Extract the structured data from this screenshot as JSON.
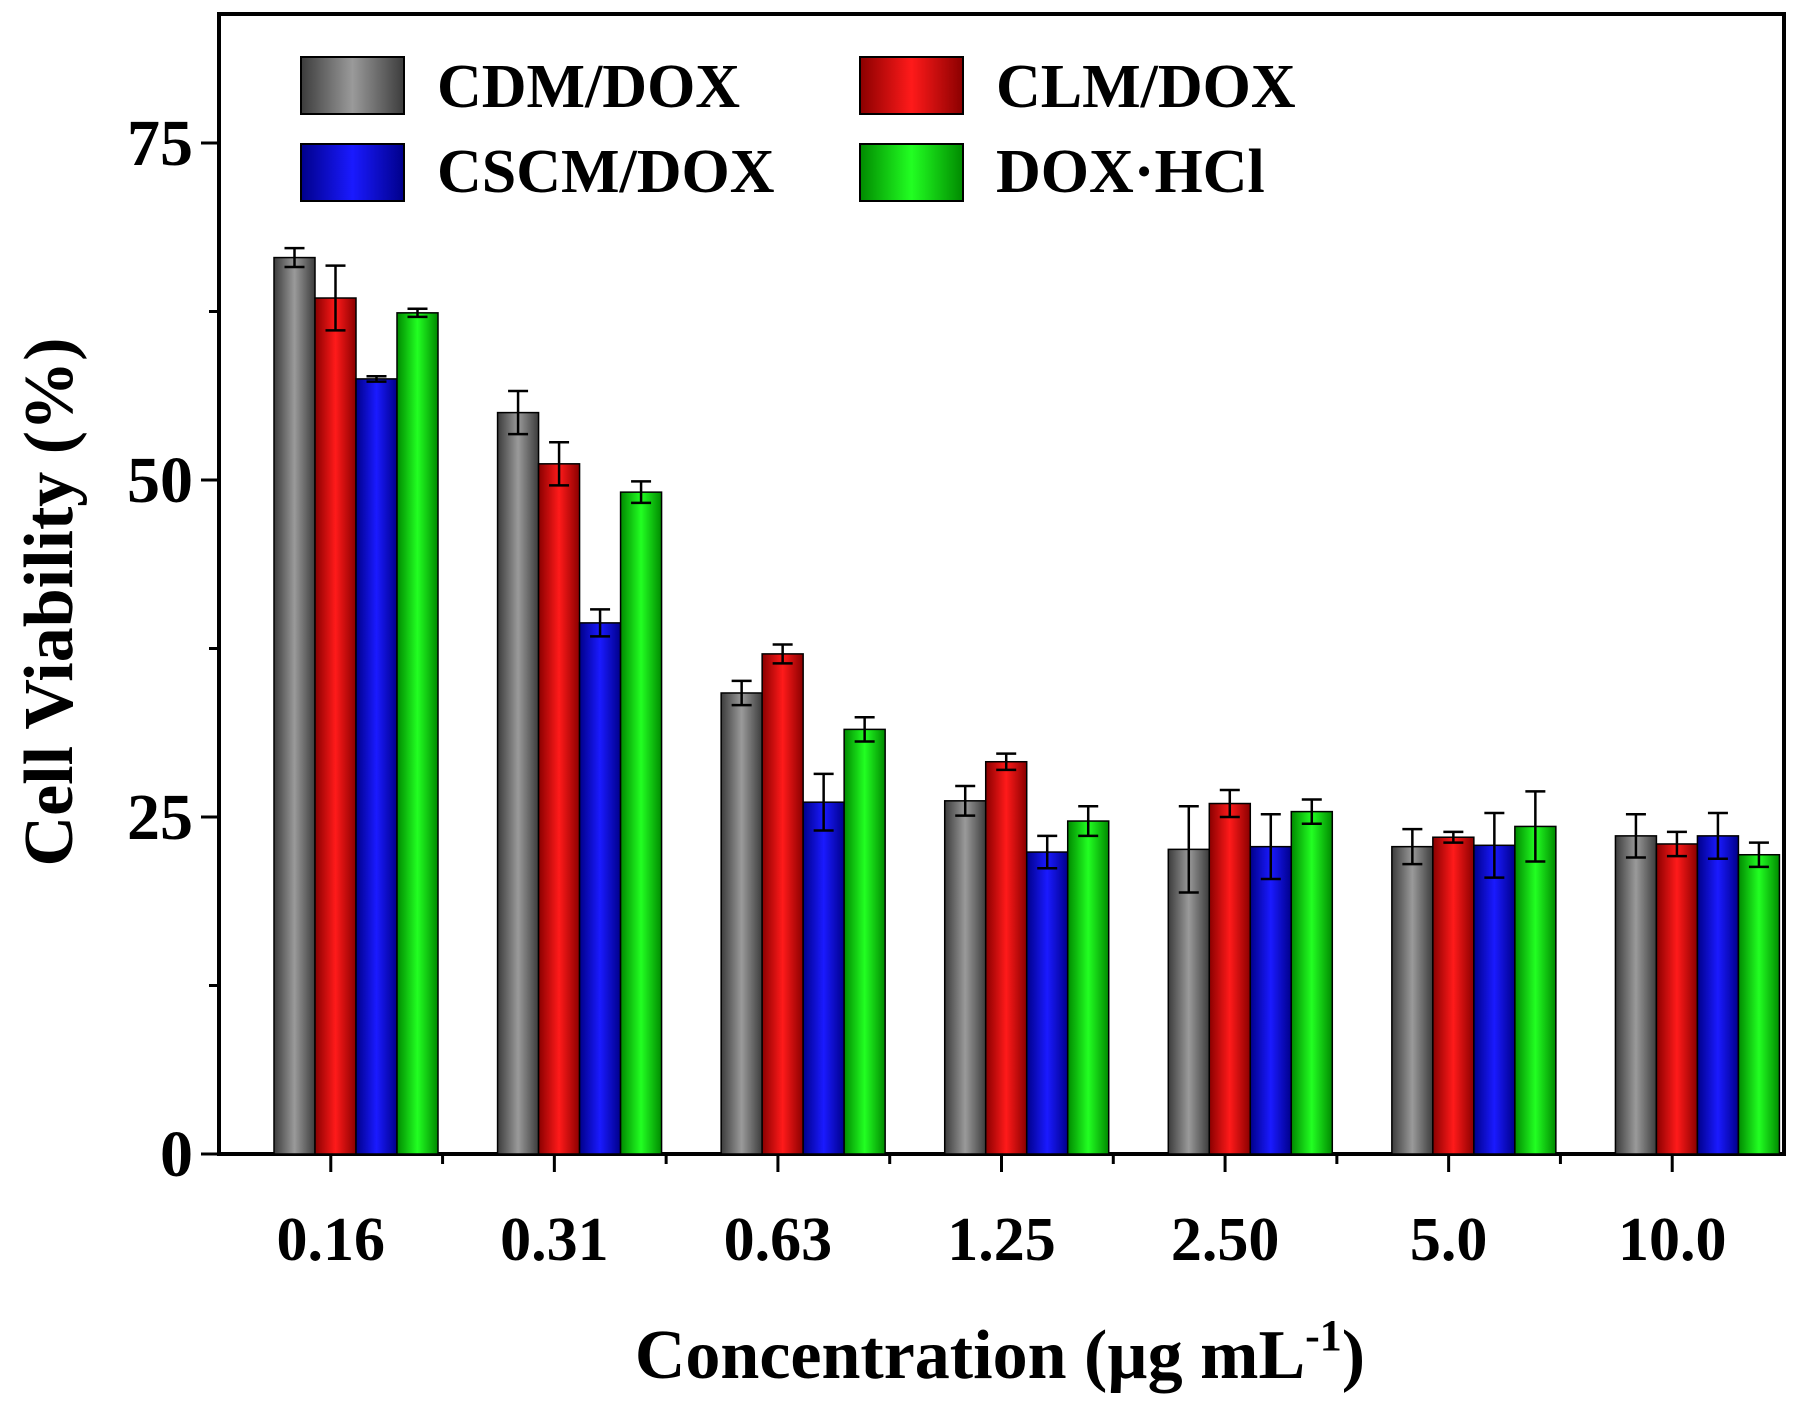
{
  "chart_data": {
    "type": "bar",
    "xlabel": "Concentration (µg mL",
    "xlabel_superscript": "-1",
    "xlabel_close": ")",
    "ylabel": "Cell Viability (%)",
    "ylim": [
      0,
      75
    ],
    "y_axis_max": 75,
    "yticks": [
      0,
      25,
      50,
      75
    ],
    "categories": [
      "0.16",
      "0.31",
      "0.63",
      "1.25",
      "2.50",
      "5.0",
      "10.0"
    ],
    "legend_position": "top-left",
    "grid": false,
    "series": [
      {
        "name": "CDM/DOX",
        "color": "#7a7a7a",
        "values": [
          66.5,
          55.0,
          34.2,
          26.2,
          22.6,
          22.8,
          23.6
        ],
        "errors": [
          0.7,
          1.6,
          0.9,
          1.1,
          3.2,
          1.3,
          1.6
        ]
      },
      {
        "name": "CLM/DOX",
        "color": "#e01010",
        "values": [
          63.5,
          51.2,
          37.1,
          29.1,
          26.0,
          23.5,
          23.0
        ],
        "errors": [
          2.4,
          1.6,
          0.7,
          0.6,
          1.0,
          0.4,
          0.9
        ]
      },
      {
        "name": "CSCM/DOX",
        "color": "#1010dc",
        "values": [
          57.5,
          39.4,
          26.1,
          22.4,
          22.8,
          22.9,
          23.6
        ],
        "errors": [
          0.2,
          1.0,
          2.1,
          1.2,
          2.4,
          2.4,
          1.7
        ]
      },
      {
        "name": "DOX·HCl",
        "color": "#12d812",
        "values": [
          62.4,
          49.1,
          31.5,
          24.7,
          25.4,
          24.3,
          22.2
        ],
        "errors": [
          0.3,
          0.8,
          0.9,
          1.1,
          0.9,
          2.6,
          0.9
        ]
      }
    ]
  }
}
